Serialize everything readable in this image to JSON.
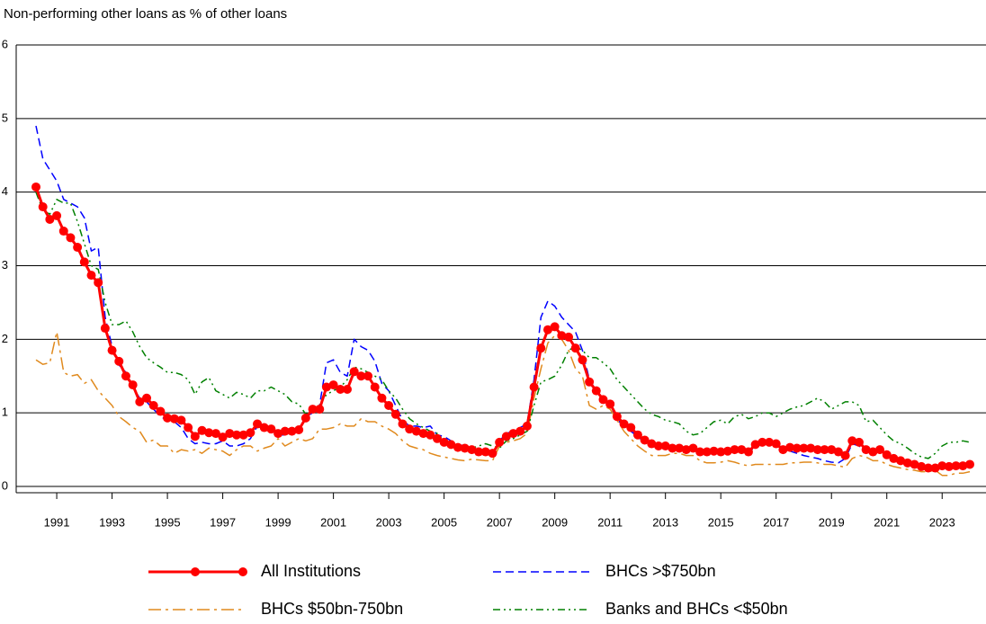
{
  "chart_data": {
    "type": "line",
    "title": "Non-performing other loans as % of other loans",
    "x": [
      1990.25,
      1990.5,
      1990.75,
      1991,
      1991.25,
      1991.5,
      1991.75,
      1992,
      1992.25,
      1992.5,
      1992.75,
      1993,
      1993.25,
      1993.5,
      1993.75,
      1994,
      1994.25,
      1994.5,
      1994.75,
      1995,
      1995.25,
      1995.5,
      1995.75,
      1996,
      1996.25,
      1996.5,
      1996.75,
      1997,
      1997.25,
      1997.5,
      1997.75,
      1998,
      1998.25,
      1998.5,
      1998.75,
      1999,
      1999.25,
      1999.5,
      1999.75,
      2000,
      2000.25,
      2000.5,
      2000.75,
      2001,
      2001.25,
      2001.5,
      2001.75,
      2002,
      2002.25,
      2002.5,
      2002.75,
      2003,
      2003.25,
      2003.5,
      2003.75,
      2004,
      2004.25,
      2004.5,
      2004.75,
      2005,
      2005.25,
      2005.5,
      2005.75,
      2006,
      2006.25,
      2006.5,
      2006.75,
      2007,
      2007.25,
      2007.5,
      2007.75,
      2008,
      2008.25,
      2008.5,
      2008.75,
      2009,
      2009.25,
      2009.5,
      2009.75,
      2010,
      2010.25,
      2010.5,
      2010.75,
      2011,
      2011.25,
      2011.5,
      2011.75,
      2012,
      2012.25,
      2012.5,
      2012.75,
      2013,
      2013.25,
      2013.5,
      2013.75,
      2014,
      2014.25,
      2014.5,
      2014.75,
      2015,
      2015.25,
      2015.5,
      2015.75,
      2016,
      2016.25,
      2016.5,
      2016.75,
      2017,
      2017.25,
      2017.5,
      2017.75,
      2018,
      2018.25,
      2018.5,
      2018.75,
      2019,
      2019.25,
      2019.5,
      2019.75,
      2020,
      2020.25,
      2020.5,
      2020.75,
      2021,
      2021.25,
      2021.5,
      2021.75,
      2022,
      2022.25,
      2022.5,
      2022.75,
      2023,
      2023.25,
      2023.5,
      2023.75,
      2024
    ],
    "xlim": [
      1990.25,
      2024
    ],
    "xticks": [
      1991,
      1993,
      1995,
      1997,
      1999,
      2001,
      2003,
      2005,
      2007,
      2009,
      2011,
      2013,
      2015,
      2017,
      2019,
      2021,
      2023
    ],
    "ylim": [
      0,
      6
    ],
    "yticks": [
      0,
      1,
      2,
      3,
      4,
      5,
      6
    ],
    "grid": true,
    "series": [
      {
        "name": "All Institutions",
        "color": "#ff0000",
        "values": [
          4.07,
          3.8,
          3.63,
          3.68,
          3.47,
          3.38,
          3.25,
          3.05,
          2.87,
          2.77,
          2.15,
          1.85,
          1.7,
          1.5,
          1.38,
          1.15,
          1.2,
          1.1,
          1.02,
          0.93,
          0.92,
          0.9,
          0.8,
          0.68,
          0.76,
          0.73,
          0.72,
          0.67,
          0.72,
          0.7,
          0.7,
          0.73,
          0.85,
          0.8,
          0.78,
          0.72,
          0.75,
          0.75,
          0.77,
          0.93,
          1.05,
          1.05,
          1.35,
          1.38,
          1.32,
          1.32,
          1.56,
          1.5,
          1.5,
          1.35,
          1.2,
          1.1,
          0.98,
          0.85,
          0.78,
          0.75,
          0.72,
          0.7,
          0.65,
          0.6,
          0.57,
          0.53,
          0.52,
          0.5,
          0.47,
          0.47,
          0.45,
          0.6,
          0.68,
          0.72,
          0.75,
          0.82,
          1.35,
          1.88,
          2.13,
          2.17,
          2.05,
          2.03,
          1.88,
          1.72,
          1.42,
          1.3,
          1.18,
          1.12,
          0.95,
          0.85,
          0.8,
          0.7,
          0.63,
          0.58,
          0.55,
          0.55,
          0.52,
          0.52,
          0.5,
          0.52,
          0.47,
          0.47,
          0.48,
          0.47,
          0.48,
          0.5,
          0.5,
          0.47,
          0.57,
          0.6,
          0.6,
          0.58,
          0.5,
          0.53,
          0.52,
          0.52,
          0.52,
          0.5,
          0.5,
          0.5,
          0.47,
          0.42,
          0.62,
          0.6,
          0.5,
          0.47,
          0.5,
          0.43,
          0.38,
          0.35,
          0.32,
          0.3,
          0.27,
          0.25,
          0.25,
          0.28,
          0.27,
          0.28,
          0.28,
          0.3
        ]
      },
      {
        "name": "BHCs >$750bn",
        "color": "#0000ff",
        "values": [
          4.9,
          4.45,
          4.3,
          4.15,
          3.9,
          3.85,
          3.8,
          3.65,
          3.2,
          3.25,
          2.3,
          1.9,
          1.65,
          1.55,
          1.35,
          1.2,
          1.15,
          1.05,
          0.95,
          0.9,
          0.88,
          0.8,
          0.65,
          0.58,
          0.6,
          0.58,
          0.58,
          0.62,
          0.55,
          0.55,
          0.58,
          0.65,
          0.82,
          0.78,
          0.75,
          0.7,
          0.7,
          0.72,
          0.75,
          0.95,
          1.0,
          1.1,
          1.68,
          1.72,
          1.55,
          1.5,
          2.0,
          1.9,
          1.85,
          1.7,
          1.4,
          1.3,
          1.1,
          0.9,
          0.82,
          0.82,
          0.8,
          0.82,
          0.7,
          0.68,
          0.62,
          0.57,
          0.55,
          0.52,
          0.48,
          0.47,
          0.45,
          0.62,
          0.72,
          0.75,
          0.8,
          0.85,
          1.45,
          2.3,
          2.52,
          2.45,
          2.3,
          2.2,
          2.1,
          1.85,
          1.45,
          1.3,
          1.2,
          1.1,
          0.92,
          0.8,
          0.75,
          0.68,
          0.6,
          0.55,
          0.53,
          0.52,
          0.5,
          0.5,
          0.48,
          0.5,
          0.45,
          0.45,
          0.45,
          0.45,
          0.47,
          0.48,
          0.48,
          0.45,
          0.55,
          0.58,
          0.58,
          0.55,
          0.45,
          0.48,
          0.45,
          0.42,
          0.4,
          0.38,
          0.35,
          0.33,
          0.32,
          0.38,
          0.58,
          0.55,
          0.48,
          0.45,
          0.5,
          0.42,
          0.38,
          0.33,
          0.3,
          0.28,
          0.25,
          0.25,
          0.23,
          0.3,
          0.25,
          0.27,
          0.27,
          0.3
        ]
      },
      {
        "name": "BHCs $50bn-750bn",
        "color": "#e08a1e",
        "values": [
          1.72,
          1.66,
          1.68,
          2.1,
          1.55,
          1.5,
          1.52,
          1.4,
          1.45,
          1.3,
          1.2,
          1.1,
          0.95,
          0.88,
          0.8,
          0.75,
          0.6,
          0.63,
          0.55,
          0.55,
          0.45,
          0.5,
          0.48,
          0.5,
          0.45,
          0.52,
          0.5,
          0.48,
          0.42,
          0.5,
          0.55,
          0.55,
          0.48,
          0.52,
          0.55,
          0.65,
          0.55,
          0.6,
          0.65,
          0.62,
          0.65,
          0.78,
          0.78,
          0.8,
          0.85,
          0.82,
          0.82,
          0.92,
          0.88,
          0.88,
          0.82,
          0.78,
          0.72,
          0.62,
          0.55,
          0.52,
          0.5,
          0.45,
          0.42,
          0.4,
          0.38,
          0.36,
          0.35,
          0.37,
          0.36,
          0.35,
          0.35,
          0.55,
          0.6,
          0.62,
          0.65,
          0.72,
          1.2,
          1.6,
          1.95,
          2.05,
          2.0,
          1.85,
          1.6,
          1.5,
          1.1,
          1.05,
          1.1,
          1.05,
          0.9,
          0.75,
          0.65,
          0.55,
          0.48,
          0.42,
          0.42,
          0.42,
          0.45,
          0.45,
          0.42,
          0.42,
          0.35,
          0.32,
          0.32,
          0.33,
          0.35,
          0.33,
          0.3,
          0.28,
          0.3,
          0.3,
          0.3,
          0.3,
          0.3,
          0.32,
          0.32,
          0.33,
          0.33,
          0.32,
          0.3,
          0.3,
          0.28,
          0.26,
          0.38,
          0.42,
          0.4,
          0.35,
          0.35,
          0.3,
          0.27,
          0.25,
          0.23,
          0.22,
          0.2,
          0.2,
          0.22,
          0.15,
          0.15,
          0.18,
          0.18,
          0.2
        ]
      },
      {
        "name": "Banks and BHCs <$50bn",
        "color": "#008000",
        "values": [
          4.0,
          3.75,
          3.7,
          3.9,
          3.85,
          3.85,
          3.6,
          3.3,
          3.0,
          2.95,
          2.5,
          2.2,
          2.2,
          2.25,
          2.1,
          1.9,
          1.75,
          1.68,
          1.62,
          1.55,
          1.55,
          1.52,
          1.45,
          1.25,
          1.42,
          1.48,
          1.3,
          1.25,
          1.2,
          1.28,
          1.25,
          1.2,
          1.3,
          1.3,
          1.35,
          1.3,
          1.25,
          1.15,
          1.12,
          0.98,
          1.05,
          1.1,
          1.25,
          1.3,
          1.35,
          1.45,
          1.62,
          1.6,
          1.55,
          1.5,
          1.45,
          1.3,
          1.2,
          1.05,
          0.92,
          0.85,
          0.8,
          0.75,
          0.72,
          0.62,
          0.6,
          0.55,
          0.55,
          0.52,
          0.55,
          0.58,
          0.55,
          0.52,
          0.62,
          0.65,
          0.7,
          0.75,
          1.1,
          1.42,
          1.45,
          1.5,
          1.65,
          1.85,
          1.9,
          1.85,
          1.75,
          1.75,
          1.68,
          1.6,
          1.45,
          1.35,
          1.25,
          1.15,
          1.05,
          0.98,
          0.95,
          0.9,
          0.88,
          0.85,
          0.75,
          0.7,
          0.72,
          0.8,
          0.88,
          0.9,
          0.85,
          0.95,
          0.98,
          0.92,
          0.95,
          1.0,
          1.0,
          0.95,
          1.0,
          1.05,
          1.08,
          1.1,
          1.15,
          1.2,
          1.15,
          1.05,
          1.1,
          1.15,
          1.15,
          1.1,
          0.88,
          0.9,
          0.8,
          0.7,
          0.62,
          0.58,
          0.52,
          0.45,
          0.4,
          0.38,
          0.45,
          0.55,
          0.6,
          0.6,
          0.62,
          0.6
        ]
      }
    ]
  }
}
